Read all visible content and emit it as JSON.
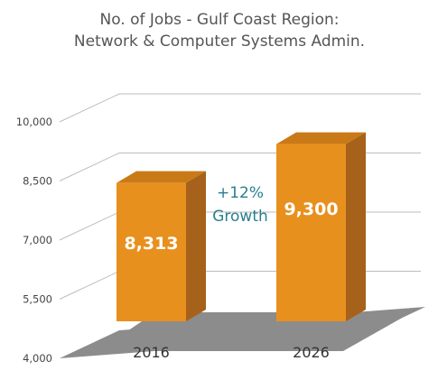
{
  "chart_data": {
    "type": "bar",
    "title": [
      "No. of Jobs - Gulf Coast Region:",
      "Network & Computer Systems Admin."
    ],
    "categories": [
      "2016",
      "2026"
    ],
    "values": [
      8313,
      9300
    ],
    "value_labels": [
      "8,313",
      "9,300"
    ],
    "ylim": [
      4000,
      10000
    ],
    "yticks": [
      4000,
      5500,
      7000,
      8500,
      10000
    ],
    "ytick_labels": [
      "4,000",
      "5,500",
      "7,000",
      "8,500",
      "10,000"
    ],
    "annotation": [
      "+12%",
      "Growth"
    ],
    "grid": true,
    "three_d": true
  },
  "colors": {
    "bar_front": "#E8901E",
    "bar_side": "#A6611A",
    "bar_top": "#C97A17",
    "floor": "#8C8C8C",
    "grid": "#BDBDBD",
    "annotation": "#2A7F8F"
  }
}
